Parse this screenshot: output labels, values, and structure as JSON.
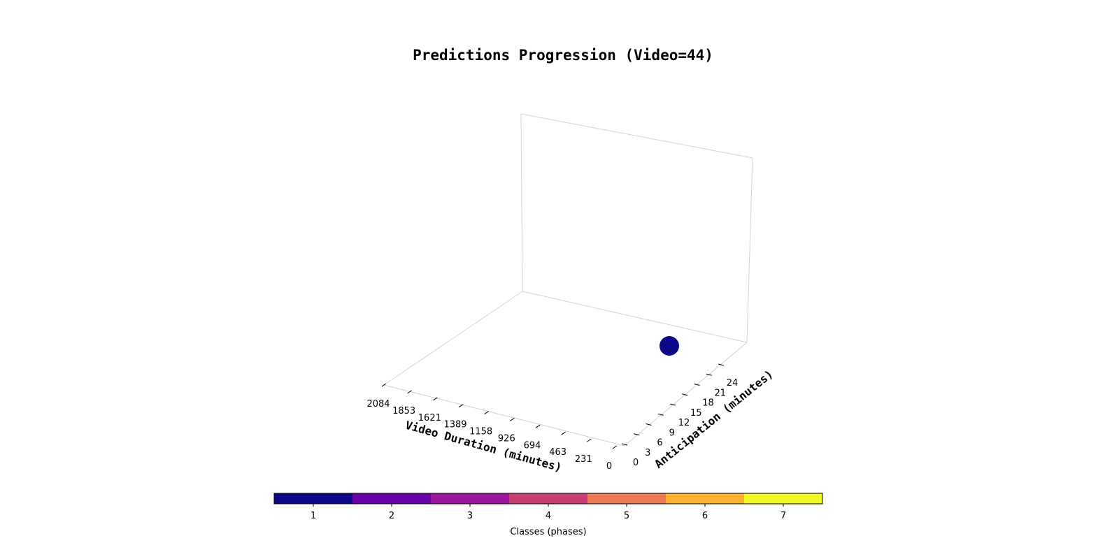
{
  "chart_data": {
    "type": "scatter",
    "projection": "3d",
    "title": "Predictions Progression (Video=44)",
    "xlabel": "Video Duration (minutes)",
    "ylabel": "Anticipation (minutes)",
    "x_ticks": [
      "0",
      "231",
      "463",
      "694",
      "926",
      "1158",
      "1389",
      "1621",
      "1853",
      "2084"
    ],
    "y_ticks": [
      "0",
      "3",
      "6",
      "9",
      "12",
      "15",
      "18",
      "21",
      "24"
    ],
    "xlim": [
      0,
      2084
    ],
    "ylim": [
      0,
      27
    ],
    "grid": false,
    "points": [
      {
        "x": 0,
        "y": 24,
        "class": 1
      }
    ],
    "colorbar": {
      "label": "Classes (phases)",
      "classes": [
        1,
        2,
        3,
        4,
        5,
        6,
        7
      ],
      "tick_labels": [
        "1",
        "2",
        "3",
        "4",
        "5",
        "6",
        "7"
      ],
      "colors": [
        "#0d0887",
        "#6a00a8",
        "#9c179e",
        "#c83e73",
        "#ed7953",
        "#fdb32f",
        "#f0f921"
      ]
    }
  }
}
